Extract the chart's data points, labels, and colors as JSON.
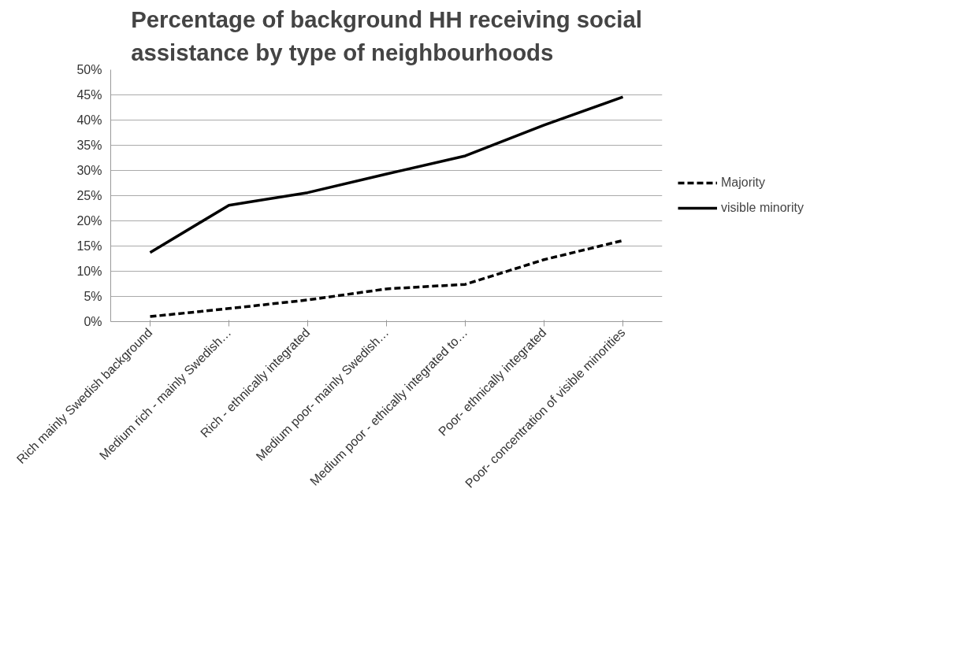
{
  "chart_data": {
    "type": "line",
    "title": "Percentage of background HH receiving social assistance by type of neighbourhoods",
    "categories": [
      "Rich mainly Swedish background",
      "Medium rich - mainly Swedish…",
      "Rich - ethnically integrated",
      "Medium poor- mainly Swedish…",
      "Medium poor - ethically integrated to…",
      "Poor- ethnically integrated",
      "Poor- concentration of visible minorities"
    ],
    "series": [
      {
        "name": "Majority",
        "color": "#000000",
        "line_style": "dashed",
        "values": [
          1.0,
          2.6,
          4.3,
          6.5,
          7.4,
          12.3,
          16.1
        ]
      },
      {
        "name": "visible minority",
        "color": "#000000",
        "line_style": "solid",
        "values": [
          13.7,
          23.1,
          25.6,
          29.3,
          32.9,
          39.0,
          44.6
        ]
      }
    ],
    "ylim": [
      0,
      50
    ],
    "yticks": [
      {
        "value": 0,
        "label": "0%"
      },
      {
        "value": 5,
        "label": "5%"
      },
      {
        "value": 10,
        "label": "10%"
      },
      {
        "value": 15,
        "label": "15%"
      },
      {
        "value": 20,
        "label": "20%"
      },
      {
        "value": 25,
        "label": "25%"
      },
      {
        "value": 30,
        "label": "30%"
      },
      {
        "value": 35,
        "label": "35%"
      },
      {
        "value": 40,
        "label": "40%"
      },
      {
        "value": 45,
        "label": "45%"
      },
      {
        "value": 50,
        "label": "50%"
      }
    ],
    "grid": "y",
    "legend": "right",
    "marker": "none"
  }
}
